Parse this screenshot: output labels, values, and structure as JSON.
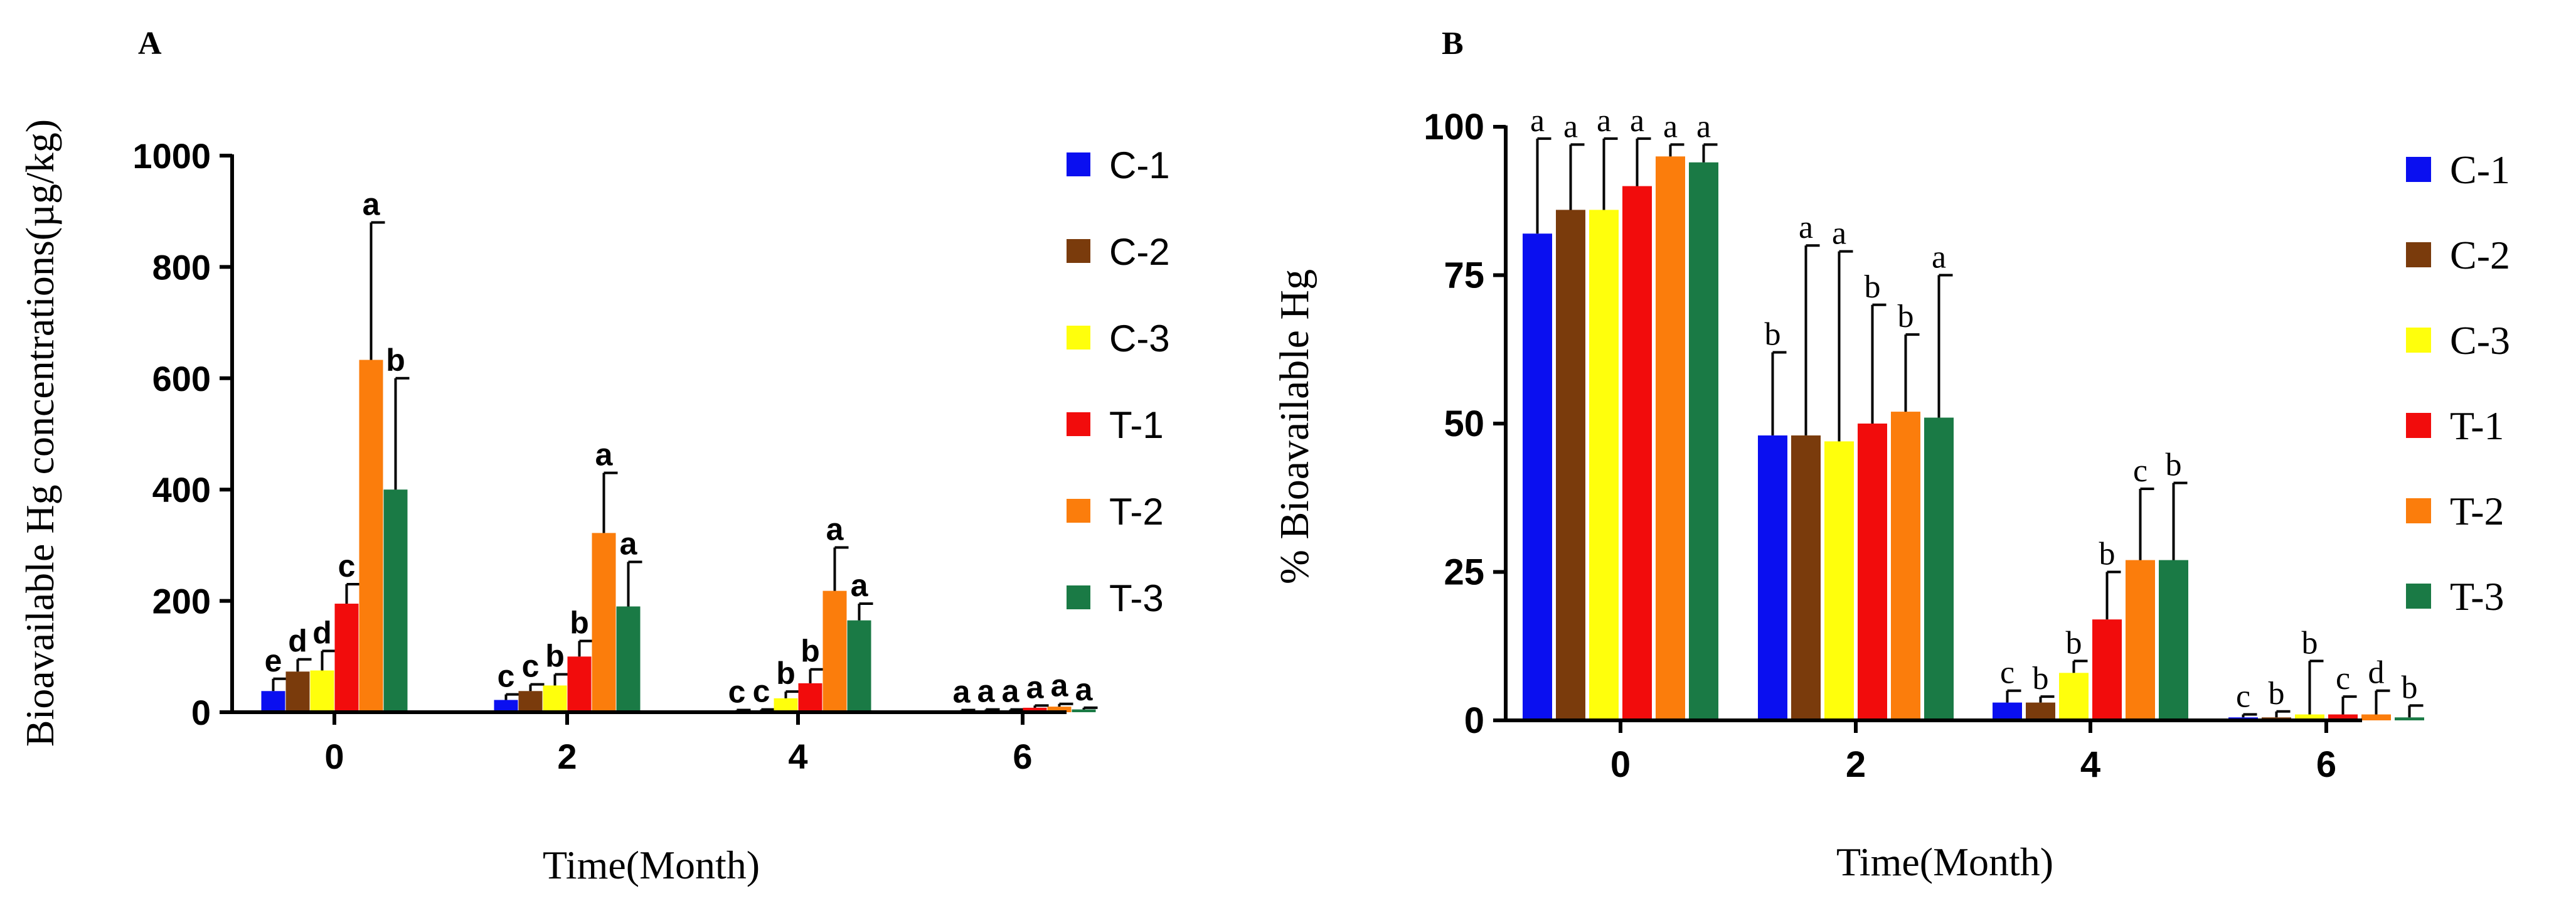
{
  "chart_data": [
    {
      "panel": "A",
      "type": "bar",
      "title": "",
      "categories": [
        "0",
        "2",
        "4",
        "6"
      ],
      "xlabel": "Time(Month)",
      "ylabel": "Bioavailable Hg concentrations(µg/kg)",
      "ylim": [
        0,
        1000
      ],
      "yticks": [
        "0",
        "200",
        "400",
        "600",
        "800",
        "1000"
      ],
      "legend_position": "right",
      "series": [
        {
          "name": "C-1",
          "color": "#0a0ff0",
          "values": [
            38,
            22,
            2,
            2
          ],
          "errors": [
            22,
            10,
            2,
            2
          ],
          "letters": [
            "e",
            "c",
            "c",
            "a"
          ]
        },
        {
          "name": "C-2",
          "color": "#7a3b0c",
          "values": [
            73,
            38,
            3,
            3
          ],
          "errors": [
            22,
            12,
            2,
            2
          ],
          "letters": [
            "d",
            "c",
            "c",
            "a"
          ]
        },
        {
          "name": "C-3",
          "color": "#ffff0c",
          "values": [
            75,
            48,
            25,
            3
          ],
          "errors": [
            35,
            20,
            12,
            2
          ],
          "letters": [
            "d",
            "b",
            "b",
            "a"
          ]
        },
        {
          "name": "T-1",
          "color": "#f20c0c",
          "values": [
            195,
            100,
            52,
            8
          ],
          "errors": [
            35,
            28,
            25,
            4
          ],
          "letters": [
            "c",
            "b",
            "b",
            "a"
          ]
        },
        {
          "name": "T-2",
          "color": "#fb7d0c",
          "values": [
            633,
            322,
            218,
            10
          ],
          "errors": [
            247,
            108,
            78,
            5
          ],
          "letters": [
            "a",
            "a",
            "a",
            "a"
          ]
        },
        {
          "name": "T-3",
          "color": "#1a7a45",
          "values": [
            400,
            190,
            165,
            5
          ],
          "errors": [
            200,
            80,
            30,
            3
          ],
          "letters": [
            "b",
            "a",
            "a",
            "a"
          ]
        }
      ]
    },
    {
      "panel": "B",
      "type": "bar",
      "title": "",
      "categories": [
        "0",
        "2",
        "4",
        "6"
      ],
      "xlabel": "Time(Month)",
      "ylabel": "% Bioavailable Hg",
      "ylim": [
        0,
        100
      ],
      "yticks": [
        "0",
        "25",
        "50",
        "75",
        "100"
      ],
      "legend_position": "right",
      "series": [
        {
          "name": "C-1",
          "color": "#0a0ff0",
          "values": [
            82,
            48,
            3,
            0.5
          ],
          "errors": [
            16,
            14,
            2,
            0.5
          ],
          "letters": [
            "a",
            "b",
            "c",
            "c"
          ]
        },
        {
          "name": "C-2",
          "color": "#7a3b0c",
          "values": [
            86,
            48,
            3,
            0.5
          ],
          "errors": [
            11,
            32,
            1,
            1
          ],
          "letters": [
            "a",
            "a",
            "b",
            "b"
          ]
        },
        {
          "name": "C-3",
          "color": "#ffff0c",
          "values": [
            86,
            47,
            8,
            1
          ],
          "errors": [
            12,
            32,
            2,
            9
          ],
          "letters": [
            "a",
            "a",
            "b",
            "b"
          ]
        },
        {
          "name": "T-1",
          "color": "#f20c0c",
          "values": [
            90,
            50,
            17,
            1
          ],
          "errors": [
            8,
            20,
            8,
            3
          ],
          "letters": [
            "a",
            "b",
            "b",
            "c"
          ]
        },
        {
          "name": "T-2",
          "color": "#fb7d0c",
          "values": [
            95,
            52,
            27,
            1
          ],
          "errors": [
            2,
            13,
            12,
            4
          ],
          "letters": [
            "a",
            "b",
            "c",
            "d"
          ]
        },
        {
          "name": "T-3",
          "color": "#1a7a45",
          "values": [
            94,
            51,
            27,
            0.5
          ],
          "errors": [
            3,
            24,
            13,
            2
          ],
          "letters": [
            "a",
            "a",
            "b",
            "b"
          ]
        }
      ]
    }
  ]
}
